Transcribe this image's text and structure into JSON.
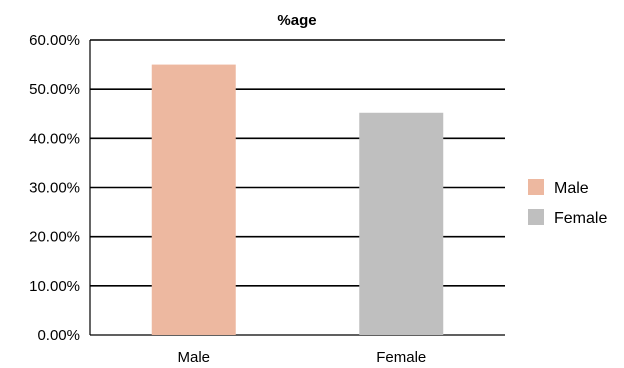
{
  "chart_data": {
    "type": "bar",
    "title": "%age",
    "xlabel": "",
    "ylabel": "",
    "categories": [
      "Male",
      "Female"
    ],
    "values": [
      55.0,
      45.2
    ],
    "colors": [
      "#EDB8A0",
      "#BFBFBF"
    ],
    "ylim": [
      0,
      60
    ],
    "yticks": [
      0,
      10,
      20,
      30,
      40,
      50,
      60
    ],
    "ytick_labels": [
      "0.00%",
      "10.00%",
      "20.00%",
      "30.00%",
      "40.00%",
      "50.00%",
      "60.00%"
    ],
    "grid": true,
    "legend": {
      "position": "right",
      "entries": [
        "Male",
        "Female"
      ]
    }
  }
}
